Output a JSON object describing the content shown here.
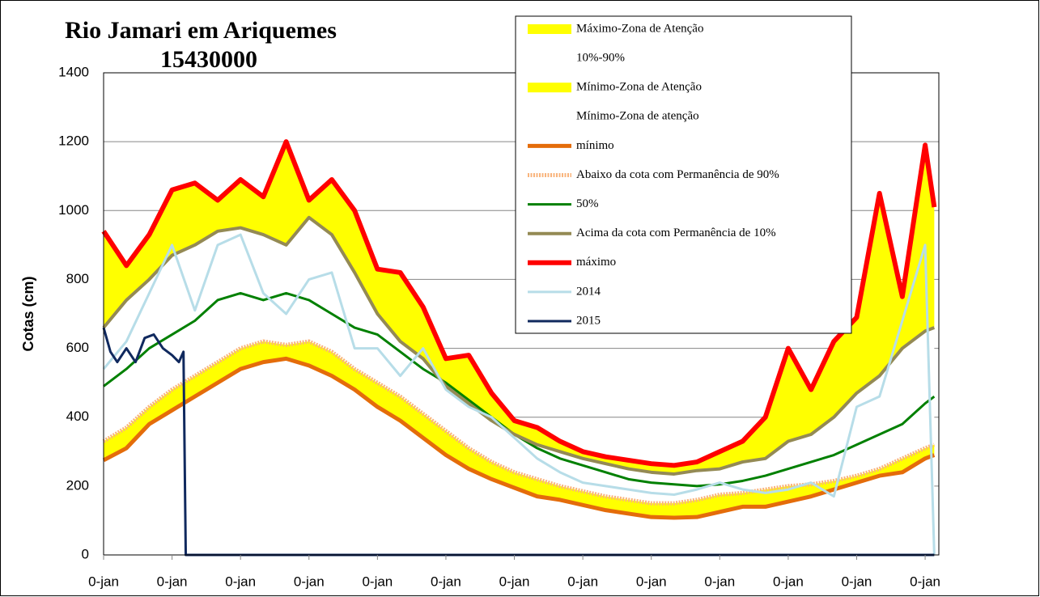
{
  "chart_data": {
    "type": "line",
    "title": "Rio Jamari em Ariquemes",
    "subtitle": "15430000",
    "y_label": "Cotas (cm)",
    "x": [
      0,
      10,
      20,
      30,
      40,
      50,
      60,
      70,
      80,
      90,
      100,
      110,
      120,
      130,
      140,
      150,
      160,
      170,
      180,
      190,
      200,
      210,
      220,
      230,
      240,
      250,
      260,
      270,
      280,
      290,
      300,
      310,
      320,
      330,
      340,
      350,
      360,
      364
    ],
    "xlim": [
      0,
      366
    ],
    "xticks": [
      {
        "value": 0,
        "label": "0-jan"
      },
      {
        "value": 30,
        "label": "0-jan"
      },
      {
        "value": 60,
        "label": "0-jan"
      },
      {
        "value": 90,
        "label": "0-jan"
      },
      {
        "value": 120,
        "label": "0-jan"
      },
      {
        "value": 150,
        "label": "0-jan"
      },
      {
        "value": 180,
        "label": "0-jan"
      },
      {
        "value": 210,
        "label": "0-jan"
      },
      {
        "value": 240,
        "label": "0-jan"
      },
      {
        "value": 270,
        "label": "0-jan"
      },
      {
        "value": 300,
        "label": "0-jan"
      },
      {
        "value": 330,
        "label": "0-jan"
      },
      {
        "value": 360,
        "label": "0-jan"
      }
    ],
    "ylim": [
      0,
      1400
    ],
    "yticks": [
      0,
      200,
      400,
      600,
      800,
      1000,
      1200,
      1400
    ],
    "grid": true,
    "legend": "top-right",
    "bands": [
      {
        "name": "Máximo-Zona de Atenção",
        "color": "#ffff00",
        "between": [
          "Acima da cota com Permanência de 10%",
          "máximo"
        ]
      },
      {
        "name": "10%-90%",
        "color": "#ffffff",
        "between": [
          "Abaixo da cota com Permanência de 90%",
          "Acima da cota com Permanência de 10%"
        ]
      },
      {
        "name": "Mínimo-Zona de Atenção",
        "color": "#ffff00",
        "between": [
          "mínimo",
          "Abaixo da cota com Permanência de 90%"
        ]
      },
      {
        "name": "Mínimo-Zona de atenção",
        "color": "#ffffff",
        "between": [
          "mínimo"
        ]
      }
    ],
    "series": [
      {
        "name": "mínimo",
        "color": "#e46c0a",
        "width": 5,
        "values": [
          275,
          310,
          380,
          420,
          460,
          500,
          540,
          560,
          570,
          550,
          520,
          480,
          430,
          390,
          340,
          290,
          250,
          220,
          195,
          170,
          160,
          145,
          130,
          120,
          110,
          108,
          110,
          125,
          140,
          140,
          155,
          170,
          190,
          210,
          230,
          240,
          280,
          290
        ]
      },
      {
        "name": "Abaixo da cota com Permanência de 90%",
        "color": "#f9b47c",
        "width": 5,
        "dashed": true,
        "values": [
          330,
          370,
          430,
          480,
          520,
          560,
          600,
          620,
          610,
          620,
          590,
          540,
          500,
          460,
          410,
          360,
          310,
          270,
          240,
          220,
          200,
          185,
          170,
          160,
          150,
          150,
          160,
          175,
          180,
          190,
          200,
          205,
          215,
          230,
          250,
          280,
          310,
          320
        ]
      },
      {
        "name": "50%",
        "color": "#008000",
        "width": 3,
        "values": [
          490,
          540,
          600,
          640,
          680,
          740,
          760,
          740,
          760,
          740,
          700,
          660,
          640,
          590,
          540,
          500,
          450,
          400,
          350,
          310,
          280,
          260,
          240,
          220,
          210,
          205,
          200,
          205,
          215,
          230,
          250,
          270,
          290,
          320,
          350,
          380,
          440,
          460
        ]
      },
      {
        "name": "Acima da cota com Permanência de 10%",
        "color": "#948a54",
        "width": 4,
        "values": [
          660,
          740,
          800,
          870,
          900,
          940,
          950,
          930,
          900,
          980,
          930,
          820,
          700,
          620,
          570,
          490,
          440,
          390,
          350,
          320,
          300,
          280,
          265,
          250,
          240,
          235,
          245,
          250,
          270,
          280,
          330,
          350,
          400,
          470,
          520,
          600,
          650,
          660
        ]
      },
      {
        "name": "máximo",
        "color": "#ff0000",
        "width": 6,
        "values": [
          940,
          840,
          930,
          1060,
          1080,
          1030,
          1090,
          1040,
          1200,
          1030,
          1090,
          1000,
          830,
          820,
          720,
          570,
          580,
          470,
          390,
          370,
          330,
          300,
          285,
          275,
          265,
          260,
          270,
          300,
          330,
          400,
          600,
          480,
          620,
          690,
          1050,
          750,
          1190,
          1010
        ]
      },
      {
        "name": "2014",
        "color": "#b7dde8",
        "width": 3,
        "values": [
          540,
          620,
          760,
          900,
          710,
          900,
          930,
          760,
          700,
          800,
          820,
          600,
          600,
          520,
          600,
          480,
          430,
          400,
          340,
          280,
          240,
          210,
          200,
          190,
          180,
          175,
          190,
          210,
          190,
          180,
          190,
          210,
          170,
          430,
          460,
          680,
          900,
          0
        ]
      },
      {
        "name": "2015",
        "color": "#10295e",
        "width": 3,
        "x": [
          0,
          3,
          6,
          10,
          14,
          18,
          22,
          26,
          30,
          33,
          35,
          36,
          364
        ],
        "values": [
          660,
          590,
          560,
          600,
          560,
          630,
          640,
          600,
          580,
          560,
          590,
          0,
          0
        ]
      }
    ]
  }
}
